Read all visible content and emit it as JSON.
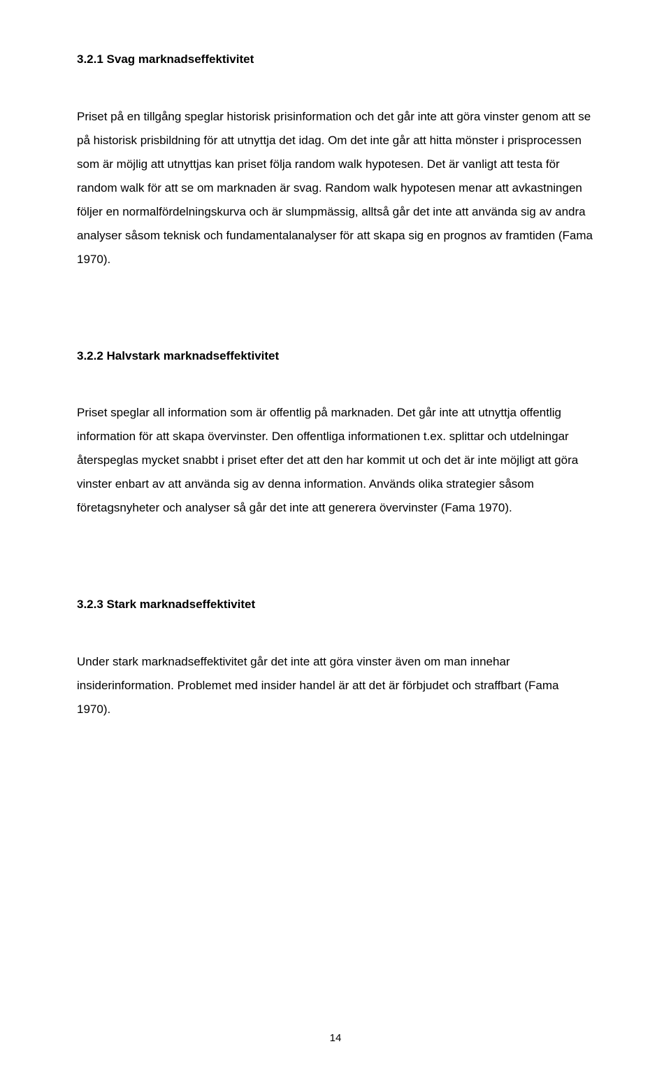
{
  "section1": {
    "heading": "3.2.1 Svag marknadseffektivitet",
    "paragraph": "Priset på en tillgång speglar historisk prisinformation och det går inte att göra vinster genom att se på historisk prisbildning för att utnyttja det idag. Om det inte går att hitta mönster i prisprocessen som är möjlig att utnyttjas kan priset följa random walk hypotesen. Det är vanligt att testa för random walk för att se om marknaden är svag. Random walk hypotesen menar att avkastningen följer en normalfördelningskurva och är slumpmässig, alltså går det inte att använda sig av andra analyser såsom teknisk och fundamentalanalyser för att skapa sig en prognos av framtiden (Fama 1970)."
  },
  "section2": {
    "heading": "3.2.2 Halvstark marknadseffektivitet",
    "paragraph": "Priset speglar all information som är offentlig på marknaden. Det går inte att utnyttja offentlig information för att skapa övervinster. Den offentliga informationen t.ex. splittar och utdelningar återspeglas mycket snabbt i priset efter det att den har kommit ut och det är inte möjligt att göra vinster enbart av att använda sig av denna information. Används olika strategier såsom företagsnyheter och analyser så går det inte att generera övervinster (Fama 1970)."
  },
  "section3": {
    "heading": "3.2.3 Stark marknadseffektivitet",
    "paragraph": "Under stark marknadseffektivitet går det inte att göra vinster även om man innehar insiderinformation. Problemet med insider handel är att det är förbjudet och straffbart (Fama 1970)."
  },
  "pageNumber": "14"
}
